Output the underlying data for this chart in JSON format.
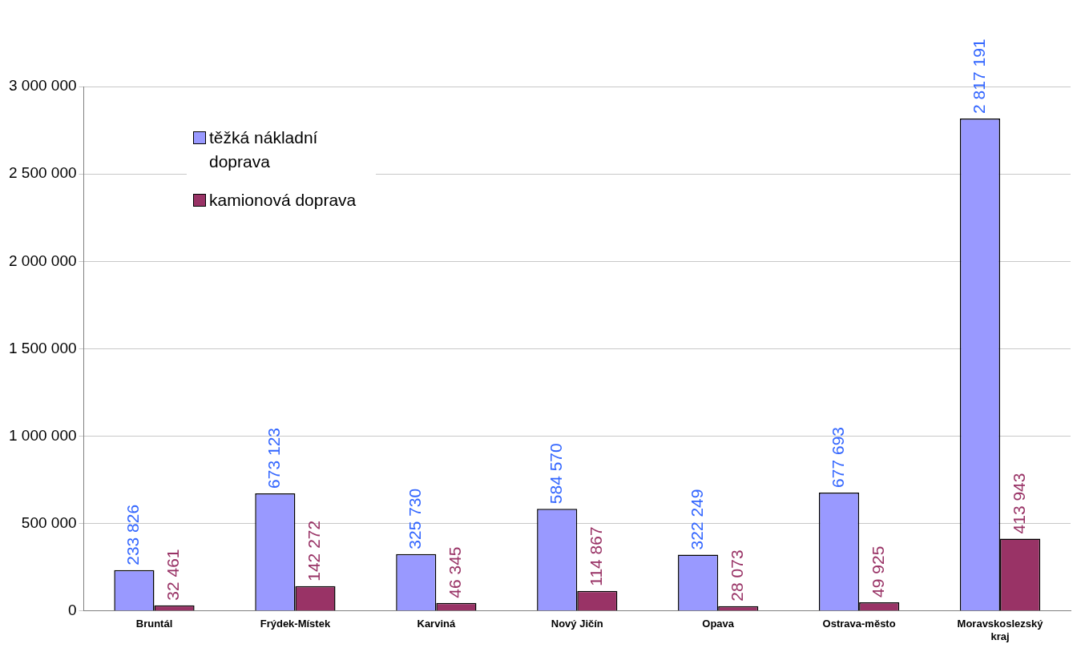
{
  "chart_data": {
    "type": "bar",
    "categories": [
      "Bruntál",
      "Frýdek-Místek",
      "Karviná",
      "Nový Jičín",
      "Opava",
      "Ostrava-město",
      "Moravskoslezský kraj"
    ],
    "series": [
      {
        "name": "těžká nákladní doprava",
        "color": "#9999ff",
        "values": [
          233826,
          673123,
          325730,
          584570,
          322249,
          677693,
          2817191
        ],
        "value_labels": [
          "233 826",
          "673 123",
          "325 730",
          "584 570",
          "322 249",
          "677 693",
          "2 817 191"
        ]
      },
      {
        "name": "kamionová doprava",
        "color": "#993366",
        "values": [
          32461,
          142272,
          46345,
          114867,
          28073,
          49925,
          413943
        ],
        "value_labels": [
          "32 461",
          "142 272",
          "46 345",
          "114 867",
          "28 073",
          "49 925",
          "413 943"
        ]
      }
    ],
    "ylim": [
      0,
      3000000
    ],
    "yticks": [
      {
        "value": 0,
        "label": "0"
      },
      {
        "value": 500000,
        "label": "500 000"
      },
      {
        "value": 1000000,
        "label": "1 000 000"
      },
      {
        "value": 1500000,
        "label": "1 500 000"
      },
      {
        "value": 2000000,
        "label": "2 000 000"
      },
      {
        "value": 2500000,
        "label": "2 500 000"
      },
      {
        "value": 3000000,
        "label": "3 000 000"
      }
    ],
    "grid": "y",
    "legend": "top left"
  }
}
